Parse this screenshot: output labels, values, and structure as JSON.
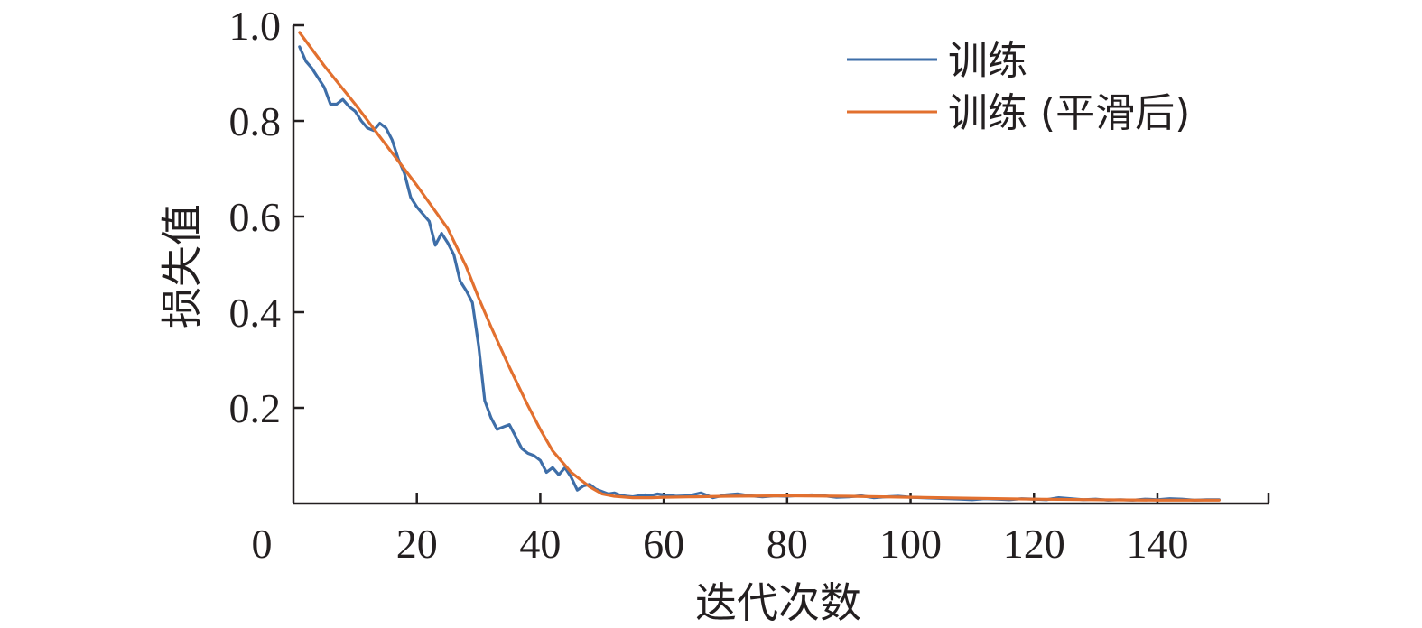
{
  "chart_data": {
    "type": "line",
    "title": "",
    "xlabel": "迭代次数",
    "ylabel": "损失值",
    "xlim": [
      0,
      158
    ],
    "ylim": [
      0,
      1.0
    ],
    "x_ticks": [
      0,
      20,
      40,
      60,
      80,
      100,
      120,
      140
    ],
    "x_tick_labels": [
      "0",
      "20",
      "40",
      "60",
      "80",
      "100",
      "120",
      "140"
    ],
    "y_ticks": [
      0.2,
      0.4,
      0.6,
      0.8,
      1.0
    ],
    "y_tick_labels": [
      "0.2",
      "0.4",
      "0.6",
      "0.8",
      "1.0"
    ],
    "grid": false,
    "legend_position": "top-right",
    "series": [
      {
        "name": "训练",
        "color": "#3e6ea8",
        "x": [
          1,
          2,
          3,
          4,
          5,
          6,
          7,
          8,
          9,
          10,
          11,
          12,
          13,
          14,
          15,
          16,
          17,
          18,
          19,
          20,
          21,
          22,
          23,
          24,
          25,
          26,
          27,
          28,
          29,
          30,
          31,
          32,
          33,
          34,
          35,
          36,
          37,
          38,
          39,
          40,
          41,
          42,
          43,
          44,
          45,
          46,
          47,
          48,
          49,
          50,
          51,
          52,
          53,
          54,
          55,
          56,
          57,
          58,
          59,
          60,
          62,
          64,
          66,
          68,
          70,
          72,
          74,
          76,
          78,
          80,
          82,
          84,
          86,
          88,
          90,
          92,
          94,
          96,
          98,
          100,
          102,
          104,
          106,
          108,
          110,
          112,
          114,
          116,
          118,
          120,
          122,
          124,
          126,
          128,
          130,
          132,
          134,
          136,
          138,
          140,
          142,
          144,
          146,
          148,
          150
        ],
        "values": [
          0.955,
          0.925,
          0.91,
          0.89,
          0.87,
          0.835,
          0.835,
          0.845,
          0.83,
          0.82,
          0.8,
          0.785,
          0.78,
          0.795,
          0.785,
          0.76,
          0.72,
          0.69,
          0.64,
          0.62,
          0.605,
          0.59,
          0.54,
          0.565,
          0.545,
          0.52,
          0.465,
          0.445,
          0.42,
          0.33,
          0.215,
          0.18,
          0.155,
          0.16,
          0.165,
          0.14,
          0.115,
          0.105,
          0.1,
          0.09,
          0.065,
          0.075,
          0.06,
          0.075,
          0.055,
          0.028,
          0.037,
          0.04,
          0.03,
          0.025,
          0.02,
          0.022,
          0.017,
          0.015,
          0.014,
          0.016,
          0.018,
          0.017,
          0.02,
          0.018,
          0.015,
          0.016,
          0.022,
          0.012,
          0.018,
          0.02,
          0.016,
          0.014,
          0.016,
          0.015,
          0.017,
          0.018,
          0.016,
          0.013,
          0.014,
          0.016,
          0.012,
          0.014,
          0.015,
          0.013,
          0.012,
          0.011,
          0.01,
          0.009,
          0.008,
          0.01,
          0.009,
          0.008,
          0.01,
          0.009,
          0.008,
          0.012,
          0.01,
          0.008,
          0.009,
          0.007,
          0.008,
          0.007,
          0.009,
          0.008,
          0.01,
          0.009,
          0.007,
          0.008,
          0.008
        ]
      },
      {
        "name": "训练 (平滑后)",
        "color": "#e2702f",
        "x": [
          1,
          5,
          10,
          15,
          20,
          25,
          28,
          30,
          32,
          35,
          38,
          40,
          42,
          45,
          48,
          50,
          52,
          55,
          58,
          60,
          65,
          70,
          80,
          90,
          100,
          110,
          120,
          130,
          140,
          150
        ],
        "values": [
          0.985,
          0.915,
          0.835,
          0.75,
          0.665,
          0.575,
          0.495,
          0.43,
          0.37,
          0.285,
          0.205,
          0.155,
          0.11,
          0.065,
          0.035,
          0.02,
          0.015,
          0.012,
          0.012,
          0.013,
          0.014,
          0.015,
          0.016,
          0.015,
          0.013,
          0.011,
          0.009,
          0.008,
          0.007,
          0.007
        ]
      }
    ]
  }
}
